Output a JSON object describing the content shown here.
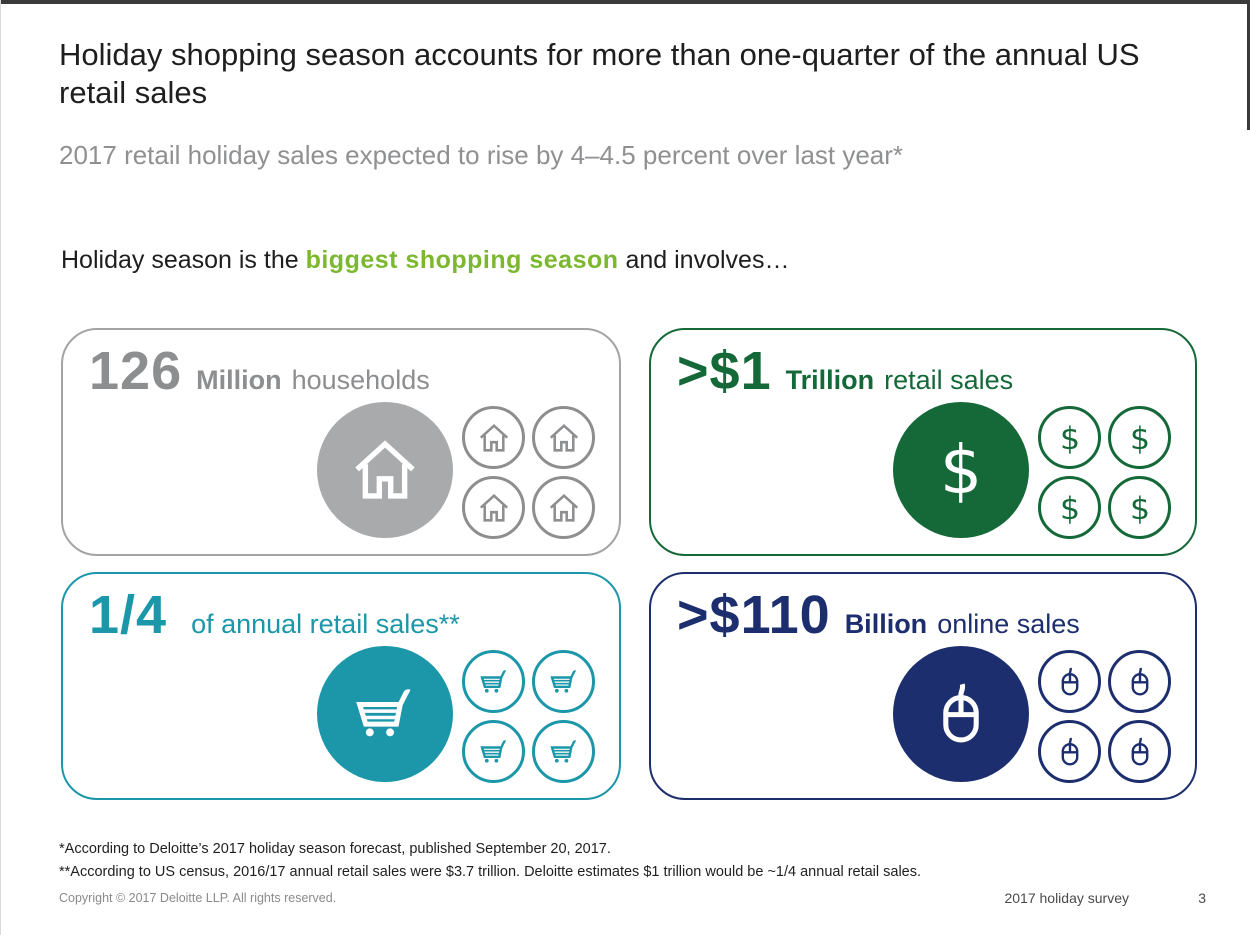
{
  "page": {
    "title": "Holiday shopping season accounts for more than one-quarter of the annual US retail sales",
    "subtitle": "2017 retail holiday sales expected to rise by 4–4.5 percent over last year*",
    "lead": {
      "prefix": "Holiday season is the ",
      "highlight": "biggest shopping season",
      "suffix": " and involves…"
    }
  },
  "cards": [
    {
      "value": "126",
      "unit": "Million",
      "label": "households",
      "icon": "house-icon",
      "color": "#8d8e90"
    },
    {
      "value": ">$1",
      "unit": "Trillion",
      "label": "retail sales",
      "icon": "dollar-icon",
      "color": "#156939"
    },
    {
      "value": "1/4",
      "unit": "",
      "label": "of annual retail sales**",
      "icon": "cart-icon",
      "color": "#1b97a9"
    },
    {
      "value": ">$110",
      "unit": "Billion",
      "label": "online sales",
      "icon": "mouse-icon",
      "color": "#1d2e6e"
    }
  ],
  "footnotes": [
    "*According to Deloitte’s 2017 holiday season forecast, published September 20, 2017.",
    "**According to US census, 2016/17 annual retail sales were $3.7 trillion. Deloitte estimates $1 trillion would be ~1/4 annual retail sales."
  ],
  "footer": {
    "copyright": "Copyright © 2017 Deloitte LLP. All rights reserved.",
    "label": "2017 holiday survey",
    "page_number": "3"
  },
  "colors": {
    "accent_green": "#7cb82f",
    "gray": "#8d8e90",
    "dark_green": "#156939",
    "teal": "#1b97a9",
    "navy": "#1d2e6e"
  }
}
